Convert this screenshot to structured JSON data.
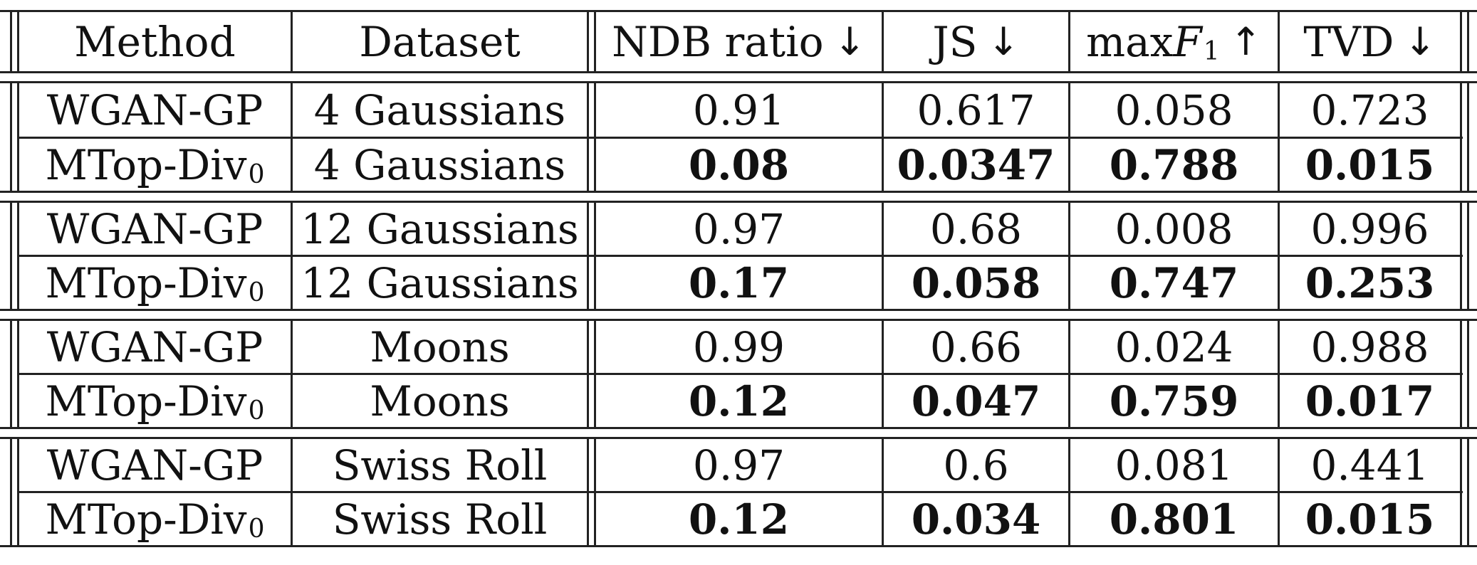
{
  "table": {
    "headers": {
      "method": "Method",
      "dataset": "Dataset",
      "ndb": "NDB ratio",
      "ndb_arrow": "↓",
      "js": "JS",
      "js_arrow": "↓",
      "maxf1_prefix": "max",
      "maxf1_var": "F",
      "maxf1_sub": "1",
      "maxf1_arrow": "↑",
      "tvd": "TVD",
      "tvd_arrow": "↓"
    },
    "rows": [
      {
        "method": "WGAN-GP",
        "method_sub": "",
        "dataset": "4 Gaussians",
        "ndb": "0.91",
        "js": "0.617",
        "maxf1": "0.058",
        "tvd": "0.723",
        "bold": false
      },
      {
        "method": "MTop-Div",
        "method_sub": "0",
        "dataset": "4 Gaussians",
        "ndb": "0.08",
        "js": "0.0347",
        "maxf1": "0.788",
        "tvd": "0.015",
        "bold": true
      },
      {
        "method": "WGAN-GP",
        "method_sub": "",
        "dataset": "12 Gaussians",
        "ndb": "0.97",
        "js": "0.68",
        "maxf1": "0.008",
        "tvd": "0.996",
        "bold": false
      },
      {
        "method": "MTop-Div",
        "method_sub": "0",
        "dataset": "12 Gaussians",
        "ndb": "0.17",
        "js": "0.058",
        "maxf1": "0.747",
        "tvd": "0.253",
        "bold": true
      },
      {
        "method": "WGAN-GP",
        "method_sub": "",
        "dataset": "Moons",
        "ndb": "0.99",
        "js": "0.66",
        "maxf1": "0.024",
        "tvd": "0.988",
        "bold": false
      },
      {
        "method": "MTop-Div",
        "method_sub": "0",
        "dataset": "Moons",
        "ndb": "0.12",
        "js": "0.047",
        "maxf1": "0.759",
        "tvd": "0.017",
        "bold": true
      },
      {
        "method": "WGAN-GP",
        "method_sub": "",
        "dataset": "Swiss Roll",
        "ndb": "0.97",
        "js": "0.6",
        "maxf1": "0.081",
        "tvd": "0.441",
        "bold": false
      },
      {
        "method": "MTop-Div",
        "method_sub": "0",
        "dataset": "Swiss Roll",
        "ndb": "0.12",
        "js": "0.034",
        "maxf1": "0.801",
        "tvd": "0.015",
        "bold": true
      }
    ]
  }
}
